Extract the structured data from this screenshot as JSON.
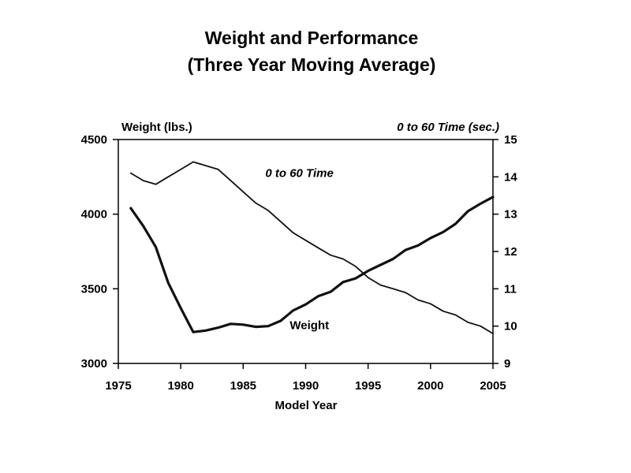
{
  "chart_data": {
    "type": "line",
    "title_line1": "Weight and Performance",
    "title_line2": "(Three Year Moving Average)",
    "xlabel": "Model Year",
    "ylabel_left": "Weight  (lbs.)",
    "ylabel_right": "0 to 60 Time (sec.)",
    "xlim": [
      1975,
      2005
    ],
    "ylim_left": [
      3000,
      4500
    ],
    "ylim_right": [
      9,
      15
    ],
    "x_ticks": [
      1975,
      1980,
      1985,
      1990,
      1995,
      2000,
      2005
    ],
    "y_ticks_left": [
      3000,
      3500,
      4000,
      4500
    ],
    "y_ticks_right": [
      9,
      10,
      11,
      12,
      13,
      14,
      15
    ],
    "grid": false,
    "legend": "none",
    "annotations": [
      {
        "text": "0 to 60 Time",
        "series": "0 to 60 Time",
        "x": 1989.5,
        "y_right": 14.0
      },
      {
        "text": "Weight",
        "series": "Weight",
        "x": 1990.3,
        "y_left": 3230
      }
    ],
    "series": [
      {
        "name": "0 to 60 Time",
        "axis": "right",
        "x": [
          1976,
          1977,
          1978,
          1979,
          1980,
          1981,
          1982,
          1983,
          1984,
          1985,
          1986,
          1987,
          1988,
          1989,
          1990,
          1991,
          1992,
          1993,
          1994,
          1995,
          1996,
          1997,
          1998,
          1999,
          2000,
          2001,
          2002,
          2003,
          2004,
          2005
        ],
        "values": [
          14.1,
          13.9,
          13.8,
          14.0,
          14.2,
          14.4,
          14.3,
          14.2,
          13.9,
          13.6,
          13.3,
          13.1,
          12.8,
          12.5,
          12.3,
          12.1,
          11.9,
          11.8,
          11.6,
          11.3,
          11.1,
          11.0,
          10.9,
          10.7,
          10.6,
          10.4,
          10.3,
          10.1,
          10.0,
          9.8
        ],
        "color": "#111111"
      },
      {
        "name": "Weight",
        "axis": "left",
        "x": [
          1976,
          1977,
          1978,
          1979,
          1980,
          1981,
          1982,
          1983,
          1984,
          1985,
          1986,
          1987,
          1988,
          1989,
          1990,
          1991,
          1992,
          1993,
          1994,
          1995,
          1996,
          1997,
          1998,
          1999,
          2000,
          2001,
          2002,
          2003,
          2004,
          2005
        ],
        "values": [
          4040,
          3920,
          3780,
          3540,
          3370,
          3210,
          3220,
          3240,
          3265,
          3260,
          3245,
          3250,
          3285,
          3355,
          3395,
          3450,
          3480,
          3545,
          3570,
          3620,
          3660,
          3700,
          3760,
          3790,
          3840,
          3880,
          3935,
          4020,
          4070,
          4115
        ],
        "color": "#111111"
      }
    ]
  }
}
